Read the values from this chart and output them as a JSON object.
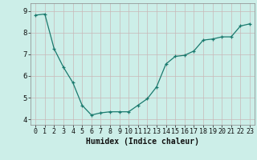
{
  "x": [
    0,
    1,
    2,
    3,
    4,
    5,
    6,
    7,
    8,
    9,
    10,
    11,
    12,
    13,
    14,
    15,
    16,
    17,
    18,
    19,
    20,
    21,
    22,
    23
  ],
  "y": [
    8.8,
    8.85,
    7.25,
    6.4,
    5.7,
    4.65,
    4.2,
    4.3,
    4.35,
    4.35,
    4.35,
    4.65,
    4.95,
    5.5,
    6.55,
    6.9,
    6.95,
    7.15,
    7.65,
    7.7,
    7.8,
    7.8,
    8.3,
    8.4
  ],
  "xlabel": "Humidex (Indice chaleur)",
  "xlim": [
    -0.5,
    23.5
  ],
  "ylim": [
    3.75,
    9.35
  ],
  "yticks": [
    4,
    5,
    6,
    7,
    8,
    9
  ],
  "xticks": [
    0,
    1,
    2,
    3,
    4,
    5,
    6,
    7,
    8,
    9,
    10,
    11,
    12,
    13,
    14,
    15,
    16,
    17,
    18,
    19,
    20,
    21,
    22,
    23
  ],
  "line_color": "#1a7a6e",
  "marker": "+",
  "bg_color": "#cceee8",
  "grid_color_v": "#c8b8b8",
  "grid_color_h": "#c8b8b8",
  "axis_color": "#888888",
  "font_color": "#111111",
  "xlabel_fontsize": 7,
  "tick_fontsize": 6,
  "linewidth": 0.9,
  "markersize": 3.5
}
